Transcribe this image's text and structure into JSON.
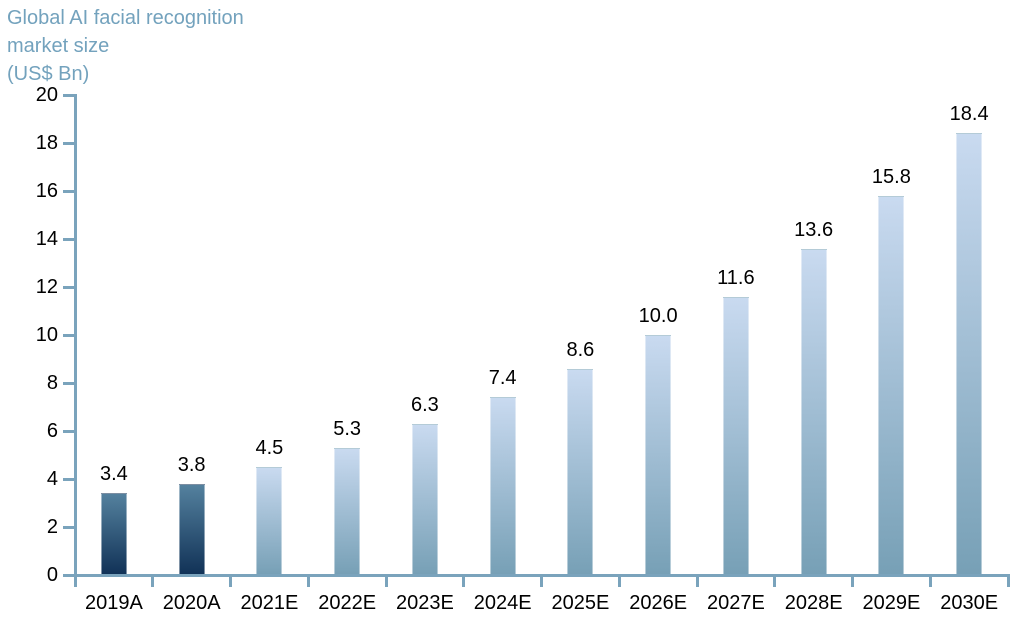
{
  "title": {
    "line1": "Global AI facial recognition",
    "line2": "market size",
    "line3": "(US$ Bn)"
  },
  "chart_data": {
    "type": "bar",
    "title": "Global AI facial recognition market size",
    "unit": "US$ Bn",
    "categories": [
      "2019A",
      "2020A",
      "2021E",
      "2022E",
      "2023E",
      "2024E",
      "2025E",
      "2026E",
      "2027E",
      "2028E",
      "2029E",
      "2030E"
    ],
    "values": [
      3.4,
      3.8,
      4.5,
      5.3,
      6.3,
      7.4,
      8.6,
      10.0,
      11.6,
      13.6,
      15.8,
      18.4
    ],
    "labels": [
      "3.4",
      "3.8",
      "4.5",
      "5.3",
      "6.3",
      "7.4",
      "8.6",
      "10.0",
      "11.6",
      "13.6",
      "15.8",
      "18.4"
    ],
    "bar_types": [
      "actual",
      "actual",
      "estimate",
      "estimate",
      "estimate",
      "estimate",
      "estimate",
      "estimate",
      "estimate",
      "estimate",
      "estimate",
      "estimate"
    ],
    "ylim": [
      0,
      20
    ],
    "ytick_step": 2,
    "yticks": [
      0,
      2,
      4,
      6,
      8,
      10,
      12,
      14,
      16,
      18,
      20
    ],
    "grid": false,
    "legend_position": "none",
    "colors": {
      "actual_top": "#54819e",
      "actual_bottom": "#113257",
      "estimate_top": "#c9daf0",
      "estimate_bottom": "#77a0b6",
      "axis": "#7aa3bc",
      "title": "#73a2bd",
      "text": "#000000"
    }
  }
}
